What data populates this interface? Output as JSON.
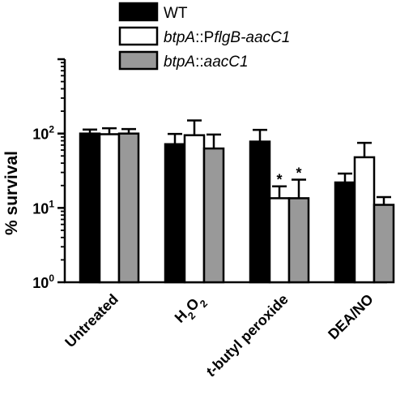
{
  "chart_data": {
    "type": "bar",
    "ylabel": "% survival",
    "yscale": "log",
    "ylim": [
      1,
      1000
    ],
    "yticks": [
      {
        "value": 1,
        "base": "10",
        "exp": "0"
      },
      {
        "value": 10,
        "base": "10",
        "exp": "1"
      },
      {
        "value": 100,
        "base": "10",
        "exp": "2"
      }
    ],
    "categories": [
      {
        "label": "Untreated",
        "parts": [
          {
            "t": "Untreated"
          }
        ]
      },
      {
        "label": "H2O2",
        "parts": [
          {
            "t": "H"
          },
          {
            "t": "2",
            "sub": true
          },
          {
            "t": "O"
          },
          {
            "t": "2",
            "sub": true
          }
        ]
      },
      {
        "label": "t-butyl peroxide",
        "parts": [
          {
            "t": "t",
            "italic": true
          },
          {
            "t": "-butyl peroxide"
          }
        ]
      },
      {
        "label": "DEA/NO",
        "parts": [
          {
            "t": "DEA/NO"
          }
        ]
      }
    ],
    "series": [
      {
        "name": "WT",
        "legend_parts": [
          {
            "t": "WT"
          }
        ],
        "fill": "#000000",
        "values": [
          100,
          72,
          78,
          22
        ],
        "errors": [
          113,
          99,
          112,
          29
        ],
        "significant": [
          false,
          false,
          false,
          false
        ]
      },
      {
        "name": "btpA::PflgB-aacC1",
        "legend_parts": [
          {
            "t": "btpA",
            "italic": true
          },
          {
            "t": "::P"
          },
          {
            "t": "flgB-aacC1",
            "italic": true
          }
        ],
        "fill": "#ffffff",
        "values": [
          98,
          95,
          13.5,
          48
        ],
        "errors": [
          118,
          150,
          19.5,
          75
        ],
        "significant": [
          false,
          false,
          true,
          false
        ]
      },
      {
        "name": "btpA::aacC1",
        "legend_parts": [
          {
            "t": "btpA",
            "italic": true
          },
          {
            "t": "::"
          },
          {
            "t": "aacC1",
            "italic": true
          }
        ],
        "fill": "#999999",
        "values": [
          100,
          63,
          13.5,
          11
        ],
        "errors": [
          115,
          97,
          24,
          14
        ],
        "significant": [
          false,
          false,
          true,
          false
        ]
      }
    ],
    "significance_marker": "*",
    "legend_position": "top"
  }
}
